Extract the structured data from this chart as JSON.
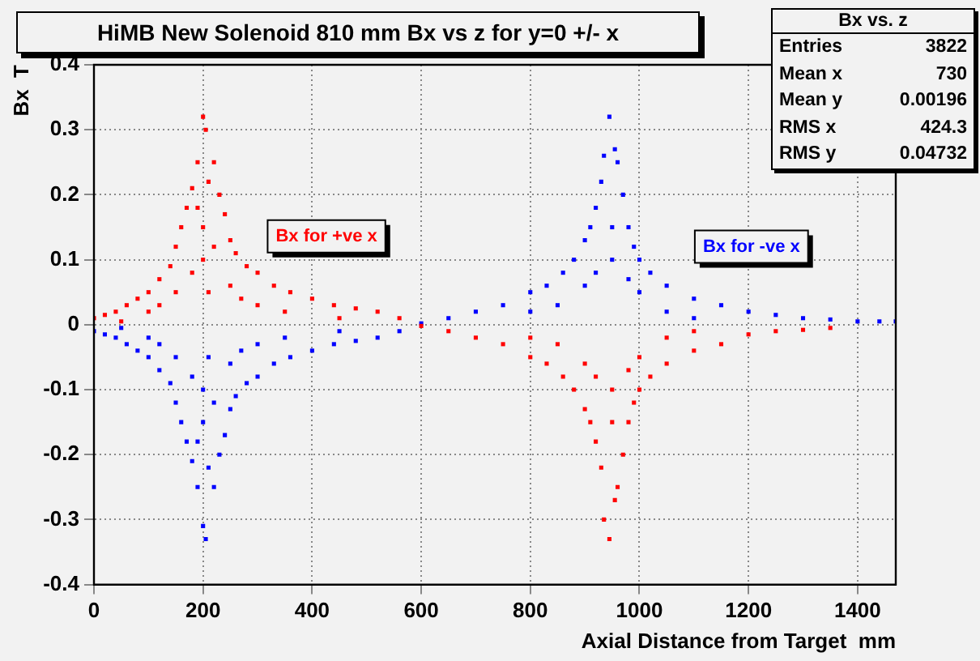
{
  "chart_data": {
    "type": "scatter",
    "title": "HiMB New Solenoid 810 mm Bx vs z for y=0 +/- x",
    "xlabel": "Axial Distance from Target  mm",
    "ylabel": "Bx  T",
    "annotations": [
      "Bx vs. z",
      "Entries",
      "3822",
      "Mean x",
      "730",
      "Mean y",
      "0.00196",
      "RMS x",
      "424.3",
      "RMS y",
      "0.04732"
    ],
    "xlim": [
      0,
      1470
    ],
    "xticks": [
      0,
      200,
      400,
      600,
      800,
      1000,
      1200,
      1400
    ],
    "ylim": [
      -0.4,
      0.4
    ],
    "yticks": [
      -0.4,
      -0.3,
      -0.2,
      -0.1,
      0,
      0.1,
      0.2,
      0.3,
      0.4
    ],
    "grid": true,
    "legend": false,
    "marker": "square",
    "series": [
      {
        "name": "Bx for +ve x",
        "color": "#ff0000",
        "x": [
          0,
          20,
          40,
          60,
          80,
          100,
          120,
          140,
          150,
          160,
          170,
          180,
          190,
          200,
          205,
          210,
          220,
          230,
          240,
          250,
          260,
          280,
          300,
          330,
          360,
          400,
          440,
          480,
          520,
          560,
          100,
          150,
          200,
          200,
          250,
          300,
          180,
          220,
          350,
          450,
          50,
          120,
          270,
          190,
          210,
          600,
          650,
          700,
          750,
          800,
          830,
          860,
          880,
          900,
          910,
          920,
          930,
          935,
          945,
          955,
          960,
          970,
          980,
          990,
          1000,
          1020,
          1050,
          1100,
          1150,
          1200,
          1250,
          1300,
          1350,
          850,
          900,
          950,
          950,
          1000,
          1050,
          920,
          980,
          800,
          1100
        ],
        "values": [
          0.01,
          0.015,
          0.02,
          0.03,
          0.04,
          0.05,
          0.07,
          0.09,
          0.12,
          0.15,
          0.18,
          0.21,
          0.25,
          0.32,
          0.3,
          0.22,
          0.25,
          0.2,
          0.17,
          0.13,
          0.11,
          0.09,
          0.08,
          0.06,
          0.05,
          0.04,
          0.03,
          0.025,
          0.02,
          0.01,
          0.02,
          0.05,
          0.1,
          0.15,
          0.06,
          0.03,
          0.08,
          0.12,
          0.02,
          0.01,
          0.005,
          0.03,
          0.04,
          0.18,
          0.05,
          -0.002,
          -0.01,
          -0.02,
          -0.03,
          -0.05,
          -0.06,
          -0.08,
          -0.1,
          -0.13,
          -0.15,
          -0.18,
          -0.22,
          -0.3,
          -0.33,
          -0.27,
          -0.25,
          -0.2,
          -0.15,
          -0.12,
          -0.1,
          -0.08,
          -0.06,
          -0.04,
          -0.03,
          -0.015,
          -0.01,
          -0.008,
          -0.005,
          -0.03,
          -0.06,
          -0.1,
          -0.15,
          -0.05,
          -0.02,
          -0.08,
          -0.07,
          -0.02,
          -0.01
        ]
      },
      {
        "name": "Bx for -ve x",
        "color": "#0000ff",
        "x": [
          0,
          20,
          40,
          60,
          80,
          100,
          120,
          140,
          150,
          160,
          170,
          180,
          190,
          200,
          205,
          210,
          220,
          230,
          240,
          250,
          260,
          280,
          300,
          330,
          360,
          400,
          440,
          480,
          520,
          560,
          100,
          150,
          200,
          200,
          250,
          300,
          180,
          220,
          350,
          450,
          50,
          120,
          270,
          190,
          210,
          600,
          650,
          700,
          750,
          800,
          830,
          860,
          880,
          900,
          910,
          920,
          930,
          935,
          945,
          955,
          960,
          970,
          980,
          990,
          1000,
          1020,
          1050,
          1100,
          1150,
          1200,
          1250,
          1300,
          1350,
          1400,
          1440,
          1470,
          850,
          900,
          950,
          950,
          1000,
          1050,
          920,
          980,
          800,
          1100
        ],
        "values": [
          -0.01,
          -0.015,
          -0.02,
          -0.03,
          -0.04,
          -0.05,
          -0.07,
          -0.09,
          -0.12,
          -0.15,
          -0.18,
          -0.21,
          -0.25,
          -0.31,
          -0.33,
          -0.22,
          -0.25,
          -0.2,
          -0.17,
          -0.13,
          -0.11,
          -0.09,
          -0.08,
          -0.06,
          -0.05,
          -0.04,
          -0.03,
          -0.025,
          -0.02,
          -0.01,
          -0.02,
          -0.05,
          -0.1,
          -0.15,
          -0.06,
          -0.03,
          -0.08,
          -0.12,
          -0.02,
          -0.01,
          -0.005,
          -0.03,
          -0.04,
          -0.18,
          -0.05,
          0.002,
          0.01,
          0.02,
          0.03,
          0.05,
          0.06,
          0.08,
          0.1,
          0.13,
          0.15,
          0.18,
          0.22,
          0.26,
          0.32,
          0.27,
          0.25,
          0.2,
          0.15,
          0.12,
          0.1,
          0.08,
          0.06,
          0.04,
          0.03,
          0.02,
          0.015,
          0.01,
          0.008,
          0.005,
          0.005,
          0.005,
          0.03,
          0.06,
          0.1,
          0.15,
          0.05,
          0.02,
          0.08,
          0.07,
          0.02,
          0.01
        ]
      }
    ]
  }
}
